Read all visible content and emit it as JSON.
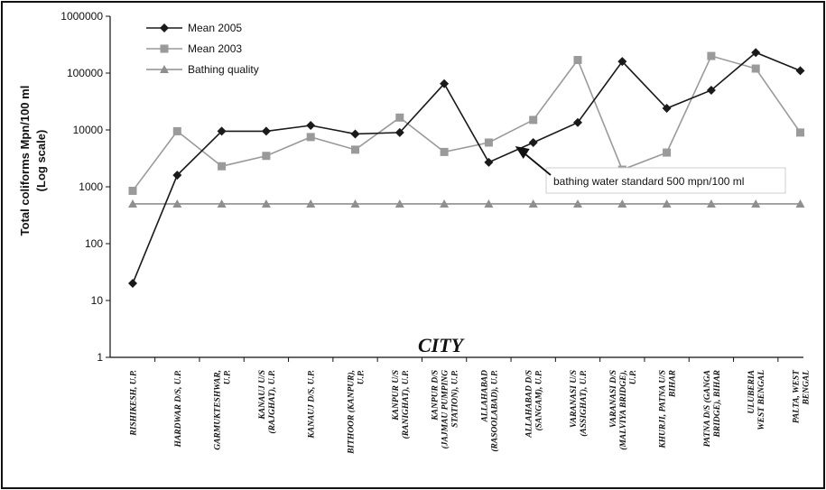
{
  "chart_data": {
    "type": "line",
    "xlabel": "CITY",
    "ylabel_lines": [
      "Total coliforms Mpn/100 ml",
      "(Log scale)"
    ],
    "yscale": "log",
    "ylim": [
      1,
      1000000
    ],
    "yticks": [
      1,
      10,
      100,
      1000,
      10000,
      100000,
      1000000
    ],
    "grid": false,
    "legend": "top-left",
    "categories": [
      [
        "RISHIKESH, U.P."
      ],
      [
        "HARDWAR D/S, U.P."
      ],
      [
        "GARMUKTESHWAR,",
        "U.P."
      ],
      [
        "KANAUJ U/S",
        "(RAJGHAT), U.P."
      ],
      [
        "KANAUJ D/S, U.P."
      ],
      [
        "BITHOOR (KANPUR),",
        "U.P."
      ],
      [
        "KANPUR U/S",
        "(RANIGHAT), U.P."
      ],
      [
        "KANPUR D/S",
        "(JAJMAU PUMPING",
        "STATION), U.P."
      ],
      [
        "ALLAHABAD",
        "(RASOOLABAD), U.P."
      ],
      [
        "ALLAHABAD D/S",
        "(SANGAM), U.P."
      ],
      [
        "VARANASI U/S",
        "(ASSIGHAT), U.P."
      ],
      [
        "VARANASI D/S",
        "(MALVIYA BRIDGE),",
        "U.P."
      ],
      [
        "KHURJI, PATNA U/S",
        "BIHAR"
      ],
      [
        "PATNA D/S (GANGA",
        "BRIDGE), BIHAR"
      ],
      [
        "ULUBERIA",
        "WEST BENGAL"
      ],
      [
        "PALTA, WEST",
        "BENGAL"
      ]
    ],
    "series": [
      {
        "name": "Mean 2005",
        "color": "#1a1a1a",
        "marker": "diamond",
        "values": [
          20,
          1600,
          9500,
          9500,
          12000,
          8500,
          9000,
          65000,
          2700,
          6000,
          13500,
          160000,
          24000,
          50000,
          230000,
          110000
        ]
      },
      {
        "name": "Mean 2003",
        "color": "#9a9a9a",
        "marker": "square",
        "values": [
          850,
          9500,
          2300,
          3500,
          7500,
          4500,
          16500,
          4100,
          6000,
          15000,
          170000,
          2000,
          4000,
          200000,
          120000,
          9000
        ]
      },
      {
        "name": "Bathing quality",
        "color": "#8f8f8f",
        "marker": "triangle",
        "values": [
          500,
          500,
          500,
          500,
          500,
          500,
          500,
          500,
          500,
          500,
          500,
          500,
          500,
          500,
          500,
          500
        ]
      }
    ],
    "annotation": {
      "text": "bathing water standard 500 mpn/100 ml",
      "points_to_category_index": 9
    }
  }
}
